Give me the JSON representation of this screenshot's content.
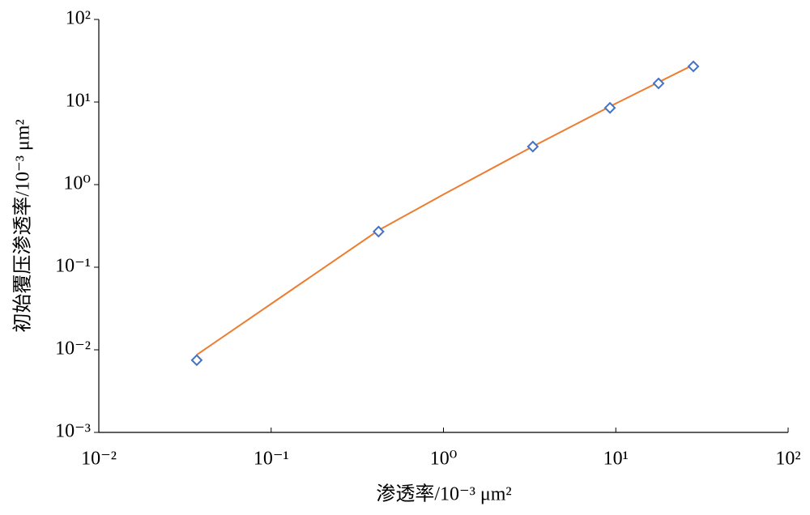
{
  "chart_data": {
    "type": "scatter",
    "xlabel": "渗透率/10⁻³ μm²",
    "ylabel": "初始覆压渗透率/10⁻³ μm²",
    "xscale": "log",
    "yscale": "log",
    "xlim": [
      0.01,
      100
    ],
    "ylim": [
      0.001,
      100
    ],
    "xticks": [
      {
        "value": 0.01,
        "label": "10⁻²"
      },
      {
        "value": 0.1,
        "label": "10⁻¹"
      },
      {
        "value": 1,
        "label": "10⁰"
      },
      {
        "value": 10,
        "label": "10¹"
      },
      {
        "value": 100,
        "label": "10²"
      }
    ],
    "yticks": [
      {
        "value": 0.001,
        "label": "10⁻³"
      },
      {
        "value": 0.01,
        "label": "10⁻²"
      },
      {
        "value": 0.1,
        "label": "10⁻¹"
      },
      {
        "value": 1,
        "label": "10⁰"
      },
      {
        "value": 10,
        "label": "10¹"
      },
      {
        "value": 100,
        "label": "10²"
      }
    ],
    "series": [
      {
        "kind": "markers",
        "color": "#4472c4",
        "x": [
          0.037,
          0.42,
          3.3,
          9.25,
          17.7,
          28.2
        ],
        "values": [
          0.0075,
          0.27,
          2.89,
          8.5,
          16.8,
          27
        ]
      },
      {
        "kind": "line",
        "color": "#ed7d31",
        "x": [
          0.037,
          0.1,
          0.42,
          1,
          3.3,
          10,
          28.2
        ],
        "values": [
          0.0087,
          0.036,
          0.28,
          0.76,
          2.9,
          9.6,
          28.2
        ]
      }
    ]
  }
}
